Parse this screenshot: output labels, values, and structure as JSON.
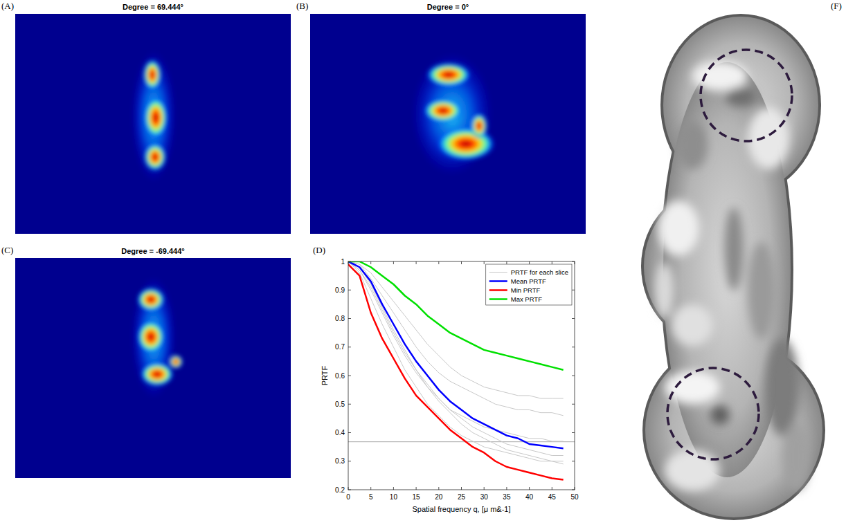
{
  "chart_data": [
    {
      "type": "image",
      "panel": "(A)",
      "title": "Degree = 69.444°"
    },
    {
      "type": "image",
      "panel": "(B)",
      "title": "Degree = 0°"
    },
    {
      "type": "image",
      "panel": "(C)",
      "title": "Degree = -69.444°"
    },
    {
      "type": "line",
      "panel": "(D)",
      "x_label": "Spatial frequency q, [μ m&-1]",
      "y_label": "PRTF",
      "x": [
        0,
        2.5,
        5,
        7.5,
        10,
        12.5,
        15,
        17.5,
        20,
        22.5,
        25,
        27.5,
        30,
        32.5,
        35,
        37.5,
        40,
        42.5,
        45,
        47.5
      ],
      "series": [
        {
          "name": "PRTF for each slice",
          "color": "#c8c8c8",
          "values": [
            [
              1,
              0.99,
              0.96,
              0.91,
              0.86,
              0.81,
              0.76,
              0.71,
              0.67,
              0.63,
              0.6,
              0.58,
              0.56,
              0.55,
              0.54,
              0.53,
              0.53,
              0.52,
              0.52,
              0.52
            ],
            [
              1,
              0.97,
              0.9,
              0.82,
              0.74,
              0.67,
              0.61,
              0.56,
              0.52,
              0.48,
              0.46,
              0.44,
              0.42,
              0.41,
              0.4,
              0.39,
              0.38,
              0.38,
              0.37,
              0.37
            ],
            [
              1,
              0.96,
              0.87,
              0.78,
              0.7,
              0.62,
              0.56,
              0.5,
              0.46,
              0.42,
              0.39,
              0.37,
              0.35,
              0.34,
              0.33,
              0.32,
              0.31,
              0.3,
              0.3,
              0.29
            ],
            [
              1,
              0.99,
              0.94,
              0.88,
              0.82,
              0.76,
              0.7,
              0.65,
              0.61,
              0.58,
              0.56,
              0.54,
              0.52,
              0.5,
              0.49,
              0.48,
              0.48,
              0.47,
              0.47,
              0.46
            ],
            [
              1,
              0.98,
              0.92,
              0.84,
              0.76,
              0.69,
              0.62,
              0.57,
              0.52,
              0.48,
              0.45,
              0.42,
              0.4,
              0.38,
              0.36,
              0.35,
              0.34,
              0.33,
              0.32,
              0.32
            ],
            [
              1,
              0.97,
              0.91,
              0.83,
              0.75,
              0.68,
              0.62,
              0.56,
              0.51,
              0.47,
              0.43,
              0.4,
              0.38,
              0.36,
              0.34,
              0.33,
              0.32,
              0.31,
              0.3,
              0.3
            ]
          ]
        },
        {
          "name": "Mean PRTF",
          "color": "#0000ff",
          "values": [
            1,
            0.98,
            0.93,
            0.85,
            0.78,
            0.71,
            0.65,
            0.6,
            0.55,
            0.51,
            0.48,
            0.45,
            0.43,
            0.41,
            0.39,
            0.38,
            0.36,
            0.355,
            0.35,
            0.345
          ]
        },
        {
          "name": "Min PRTF",
          "color": "#ff0000",
          "values": [
            0.99,
            0.95,
            0.82,
            0.73,
            0.66,
            0.59,
            0.53,
            0.49,
            0.45,
            0.41,
            0.38,
            0.35,
            0.33,
            0.3,
            0.28,
            0.27,
            0.26,
            0.25,
            0.24,
            0.235
          ]
        },
        {
          "name": "Max PRTF",
          "color": "#00e000",
          "values": [
            1,
            1,
            0.98,
            0.95,
            0.92,
            0.88,
            0.85,
            0.81,
            0.78,
            0.75,
            0.73,
            0.71,
            0.69,
            0.68,
            0.67,
            0.66,
            0.65,
            0.64,
            0.63,
            0.62
          ]
        }
      ],
      "xlim": [
        0,
        50
      ],
      "ylim": [
        0.2,
        1
      ],
      "xticks": [
        0,
        5,
        10,
        15,
        20,
        25,
        30,
        35,
        40,
        45,
        50
      ],
      "yticks": [
        0.2,
        0.3,
        0.4,
        0.5,
        0.6,
        0.7,
        0.8,
        0.9,
        1
      ],
      "hline": 0.368,
      "legend": "top-right"
    },
    {
      "type": "image",
      "panel": "(F)"
    }
  ]
}
